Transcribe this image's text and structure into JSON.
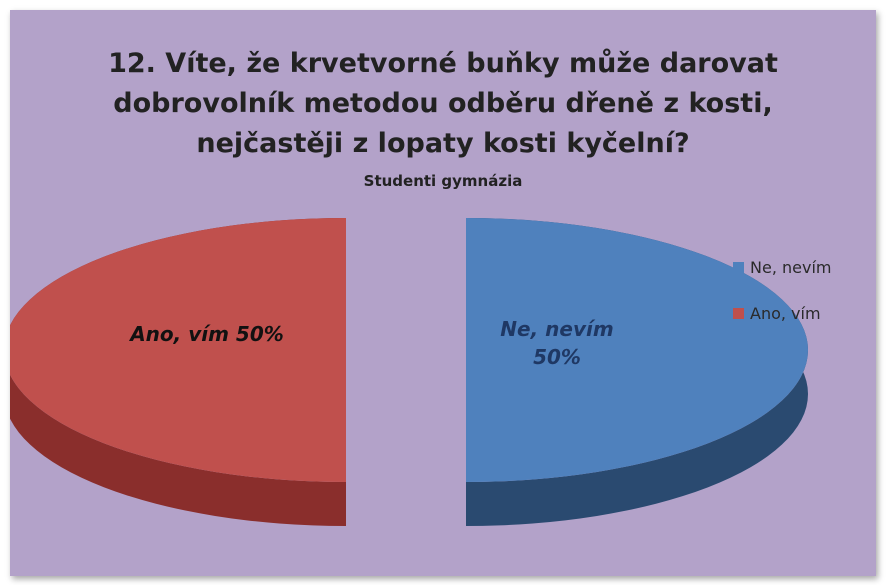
{
  "chart_data": {
    "type": "pie",
    "title_lines": [
      "12. Víte, že krvetvorné buňky může darovat",
      "dobrovolník metodou odběru dřeně z kosti,",
      "nejčastěji z lopaty kosti kyčelní?"
    ],
    "subtitle": "Studenti gymnázia",
    "slices": [
      {
        "label": "Ne, nevím",
        "value": 50,
        "percent_label": "50%",
        "data_label_lines": [
          "Ne, nevím",
          "50%"
        ],
        "color": "#4f81bd",
        "side_color": "#2a4a70",
        "label_color": "#1f3864"
      },
      {
        "label": "Ano, vím",
        "value": 50,
        "percent_label": "50%",
        "data_label_lines": [
          "Ano, vím 50%"
        ],
        "color": "#c0504d",
        "side_color": "#8a2e2c",
        "label_color": "#111111"
      }
    ],
    "legend": {
      "position": "right",
      "entries": [
        "Ne, nevím",
        "Ano, vím"
      ]
    },
    "style": "3d-exploded-pie",
    "background_color": "#b3a2c9"
  }
}
